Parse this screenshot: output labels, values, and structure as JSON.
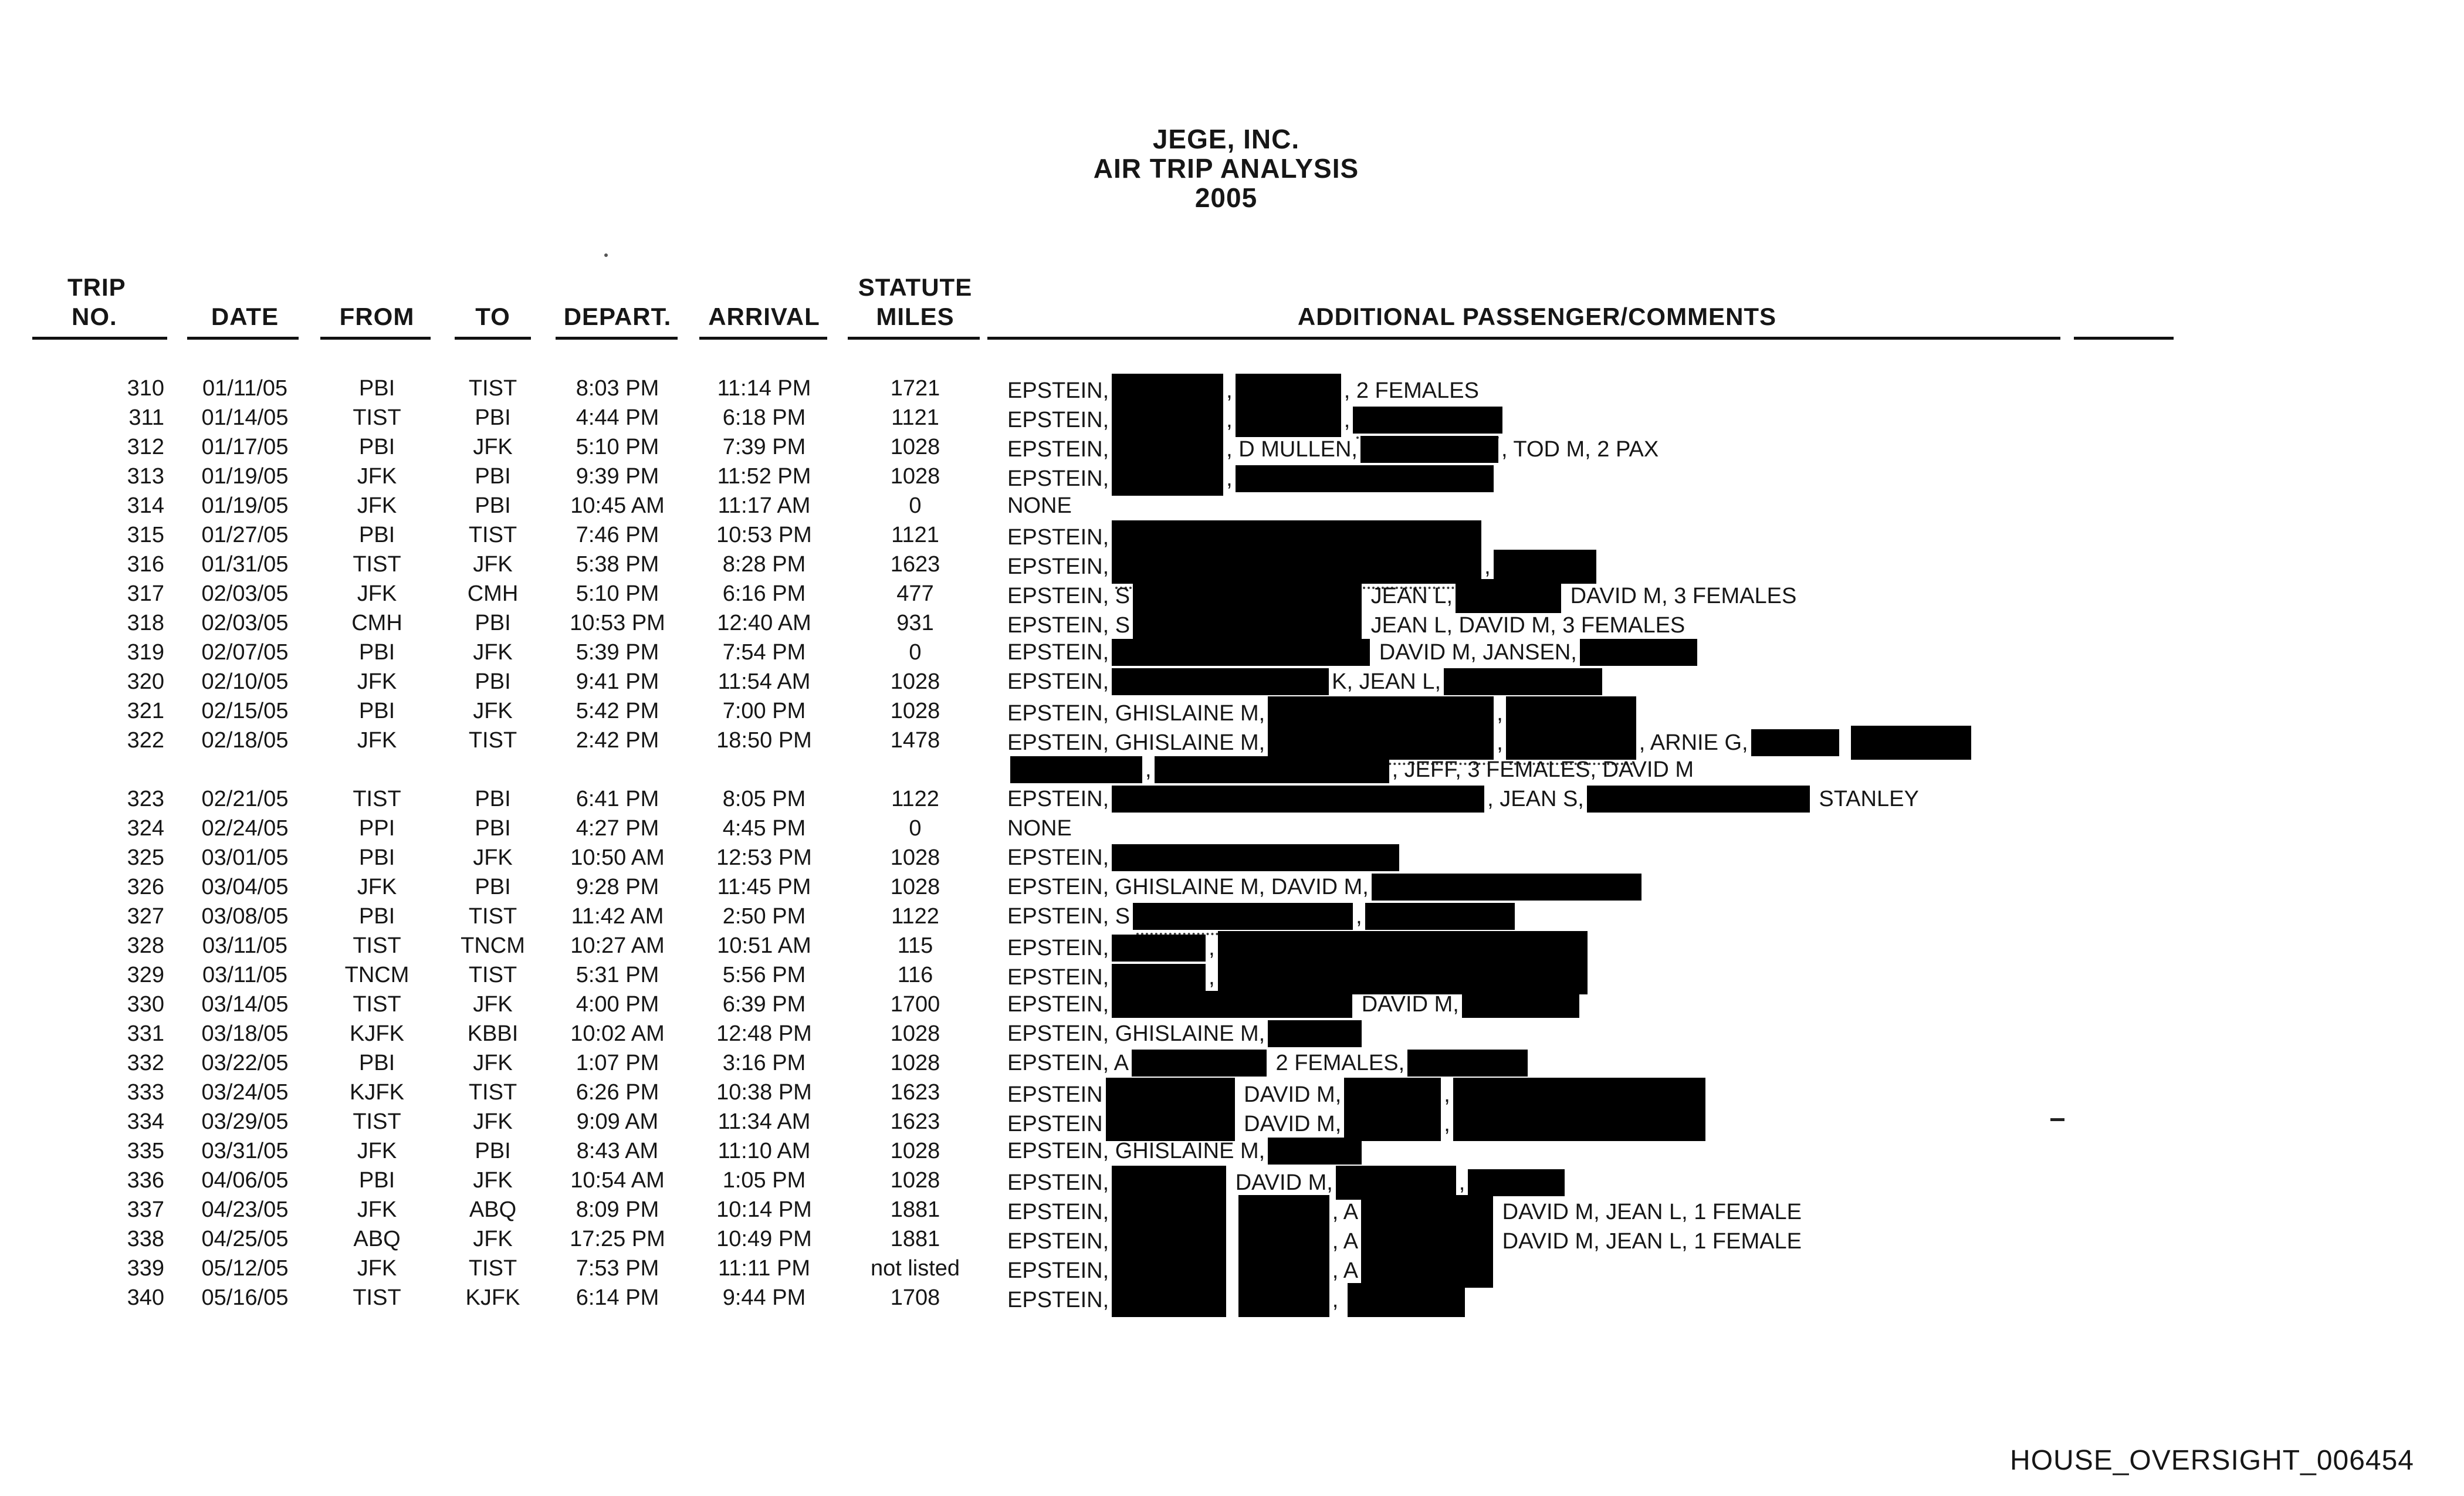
{
  "title": {
    "company": "JEGE, INC.",
    "report": "AIR TRIP ANALYSIS",
    "year": "2005"
  },
  "table": {
    "headers": {
      "trip_line1": "TRIP",
      "trip_line2": "NO.",
      "date": "DATE",
      "from": "FROM",
      "to": "TO",
      "depart": "DEPART.",
      "arrival": "ARRIVAL",
      "statute_line1": "STATUTE",
      "statute_line2": "MILES",
      "comments": "ADDITIONAL PASSENGER/COMMENTS"
    },
    "rows": [
      {
        "no": "310",
        "date": "01/11/05",
        "from": "PBI",
        "to": "TIST",
        "depart": "8:03 PM",
        "arrival": "11:14 PM",
        "miles": "1721",
        "comments": [
          {
            "text": "EPSTEIN,"
          },
          {
            "redact": 190,
            "tall": true
          },
          {
            "text": ","
          },
          {
            "redact": 180,
            "tall": true
          },
          {
            "text": ", 2 FEMALES"
          }
        ]
      },
      {
        "no": "311",
        "date": "01/14/05",
        "from": "TIST",
        "to": "PBI",
        "depart": "4:44 PM",
        "arrival": "6:18 PM",
        "miles": "1121",
        "comments": [
          {
            "text": "EPSTEIN,"
          },
          {
            "redact": 190,
            "tall": true
          },
          {
            "text": ","
          },
          {
            "redact": 180,
            "tall": true
          },
          {
            "text": ","
          },
          {
            "redact": 255,
            "rem": true
          }
        ]
      },
      {
        "no": "312",
        "date": "01/17/05",
        "from": "PBI",
        "to": "JFK",
        "depart": "5:10 PM",
        "arrival": "7:39 PM",
        "miles": "1028",
        "comments": [
          {
            "text": "EPSTEIN,"
          },
          {
            "redact": 190,
            "tall": true
          },
          {
            "text": ", D MULLEN,"
          },
          {
            "redact": 235
          },
          {
            "text": ", TOD M, 2 PAX"
          }
        ]
      },
      {
        "no": "313",
        "date": "01/19/05",
        "from": "JFK",
        "to": "PBI",
        "depart": "9:39 PM",
        "arrival": "11:52 PM",
        "miles": "1028",
        "comments": [
          {
            "text": "EPSTEIN,"
          },
          {
            "redact": 190,
            "tall": true
          },
          {
            "text": ","
          },
          {
            "redact": 440
          }
        ]
      },
      {
        "no": "314",
        "date": "01/19/05",
        "from": "JFK",
        "to": "PBI",
        "depart": "10:45 AM",
        "arrival": "11:17 AM",
        "miles": "0",
        "comments": [
          {
            "text": "NONE"
          }
        ]
      },
      {
        "no": "315",
        "date": "01/27/05",
        "from": "PBI",
        "to": "TIST",
        "depart": "7:46 PM",
        "arrival": "10:53 PM",
        "miles": "1121",
        "comments": [
          {
            "text": "EPSTEIN,"
          },
          {
            "redact": 630,
            "tall": true
          }
        ]
      },
      {
        "no": "316",
        "date": "01/31/05",
        "from": "TIST",
        "to": "JFK",
        "depart": "5:38 PM",
        "arrival": "8:28 PM",
        "miles": "1623",
        "comments": [
          {
            "text": "EPSTEIN,"
          },
          {
            "redact": 630,
            "tall": true,
            "rem": true
          },
          {
            "text": ","
          },
          {
            "redact": 175,
            "tall": true
          }
        ]
      },
      {
        "no": "317",
        "date": "02/03/05",
        "from": "JFK",
        "to": "CMH",
        "depart": "5:10 PM",
        "arrival": "6:16 PM",
        "miles": "477",
        "comments": [
          {
            "text": "EPSTEIN, S"
          },
          {
            "redact": 390,
            "tall": true
          },
          {
            "text": " JEAN L,"
          },
          {
            "redact": 180,
            "tall": true
          },
          {
            "text": " DAVID M, 3 FEMALES"
          }
        ]
      },
      {
        "no": "318",
        "date": "02/03/05",
        "from": "CMH",
        "to": "PBI",
        "depart": "10:53 PM",
        "arrival": "12:40 AM",
        "miles": "931",
        "comments": [
          {
            "text": "EPSTEIN, S"
          },
          {
            "redact": 390,
            "tall": true
          },
          {
            "text": " JEAN L, DAVID M, 3 FEMALES"
          }
        ]
      },
      {
        "no": "319",
        "date": "02/07/05",
        "from": "PBI",
        "to": "JFK",
        "depart": "5:39 PM",
        "arrival": "7:54 PM",
        "miles": "0",
        "comments": [
          {
            "text": "EPSTEIN,"
          },
          {
            "redact": 440
          },
          {
            "text": " DAVID M, JANSEN,"
          },
          {
            "redact": 200
          }
        ]
      },
      {
        "no": "320",
        "date": "02/10/05",
        "from": "JFK",
        "to": "PBI",
        "depart": "9:41 PM",
        "arrival": "11:54 AM",
        "miles": "1028",
        "comments": [
          {
            "text": "EPSTEIN,"
          },
          {
            "redact": 370
          },
          {
            "text": "K, JEAN L,"
          },
          {
            "redact": 270
          }
        ]
      },
      {
        "no": "321",
        "date": "02/15/05",
        "from": "PBI",
        "to": "JFK",
        "depart": "5:42 PM",
        "arrival": "7:00 PM",
        "miles": "1028",
        "comments": [
          {
            "text": "EPSTEIN, GHISLAINE M,"
          },
          {
            "redact": 385,
            "tall": true
          },
          {
            "text": ","
          },
          {
            "redact": 222,
            "tall": true
          }
        ]
      },
      {
        "no": "322",
        "date": "02/18/05",
        "from": "JFK",
        "to": "TIST",
        "depart": "2:42 PM",
        "arrival": "18:50 PM",
        "miles": "1478",
        "comments": [
          {
            "text": "EPSTEIN, GHISLAINE M,"
          },
          {
            "redact": 385,
            "tall": true,
            "rem": true
          },
          {
            "text": ","
          },
          {
            "redact": 222,
            "tall": true,
            "rem": true
          },
          {
            "text": ", ARNIE G,"
          },
          {
            "redact": 150
          },
          {
            "text": " "
          },
          {
            "redact": 205,
            "tall": true
          }
        ]
      },
      {
        "no": "",
        "date": "",
        "from": "",
        "to": "",
        "depart": "",
        "arrival": "",
        "miles": "",
        "comments": [
          {
            "redact": 225
          },
          {
            "text": ","
          },
          {
            "redact": 400
          },
          {
            "text": ", JEFF, 3 FEMALES, DAVID M"
          }
        ]
      },
      {
        "no": "323",
        "date": "02/21/05",
        "from": "TIST",
        "to": "PBI",
        "depart": "6:41 PM",
        "arrival": "8:05 PM",
        "miles": "1122",
        "comments": [
          {
            "text": "EPSTEIN,"
          },
          {
            "redact": 635
          },
          {
            "text": ", JEAN S,"
          },
          {
            "redact": 380
          },
          {
            "text": " STANLEY"
          }
        ]
      },
      {
        "no": "324",
        "date": "02/24/05",
        "from": "PPI",
        "to": "PBI",
        "depart": "4:27 PM",
        "arrival": "4:45 PM",
        "miles": "0",
        "comments": [
          {
            "text": "NONE"
          }
        ]
      },
      {
        "no": "325",
        "date": "03/01/05",
        "from": "PBI",
        "to": "JFK",
        "depart": "10:50 AM",
        "arrival": "12:53 PM",
        "miles": "1028",
        "comments": [
          {
            "text": "EPSTEIN,"
          },
          {
            "redact": 490
          }
        ]
      },
      {
        "no": "326",
        "date": "03/04/05",
        "from": "JFK",
        "to": "PBI",
        "depart": "9:28 PM",
        "arrival": "11:45 PM",
        "miles": "1028",
        "comments": [
          {
            "text": "EPSTEIN, GHISLAINE M, DAVID M,"
          },
          {
            "redact": 460
          }
        ]
      },
      {
        "no": "327",
        "date": "03/08/05",
        "from": "PBI",
        "to": "TIST",
        "depart": "11:42 AM",
        "arrival": "2:50 PM",
        "miles": "1122",
        "comments": [
          {
            "text": "EPSTEIN, S"
          },
          {
            "redact": 375,
            "rem": true
          },
          {
            "text": ","
          },
          {
            "redact": 255,
            "rem": true
          }
        ]
      },
      {
        "no": "328",
        "date": "03/11/05",
        "from": "TIST",
        "to": "TNCM",
        "depart": "10:27 AM",
        "arrival": "10:51 AM",
        "miles": "115",
        "comments": [
          {
            "text": "EPSTEIN,"
          },
          {
            "redact": 160
          },
          {
            "text": ","
          },
          {
            "redact": 630,
            "tall": true
          }
        ]
      },
      {
        "no": "329",
        "date": "03/11/05",
        "from": "TNCM",
        "to": "TIST",
        "depart": "5:31 PM",
        "arrival": "5:56 PM",
        "miles": "116",
        "comments": [
          {
            "text": "EPSTEIN,"
          },
          {
            "redact": 160
          },
          {
            "text": ","
          },
          {
            "redact": 630,
            "tall": true
          }
        ]
      },
      {
        "no": "330",
        "date": "03/14/05",
        "from": "TIST",
        "to": "JFK",
        "depart": "4:00 PM",
        "arrival": "6:39 PM",
        "miles": "1700",
        "comments": [
          {
            "text": "EPSTEIN,"
          },
          {
            "redact": 410
          },
          {
            "text": " DAVID M,"
          },
          {
            "redact": 200
          }
        ]
      },
      {
        "no": "331",
        "date": "03/18/05",
        "from": "KJFK",
        "to": "KBBI",
        "depart": "10:02 AM",
        "arrival": "12:48 PM",
        "miles": "1028",
        "comments": [
          {
            "text": "EPSTEIN, GHISLAINE M,"
          },
          {
            "redact": 160
          }
        ]
      },
      {
        "no": "332",
        "date": "03/22/05",
        "from": "PBI",
        "to": "JFK",
        "depart": "1:07 PM",
        "arrival": "3:16 PM",
        "miles": "1028",
        "comments": [
          {
            "text": "EPSTEIN, A"
          },
          {
            "redact": 230
          },
          {
            "text": " 2 FEMALES,"
          },
          {
            "redact": 205
          }
        ]
      },
      {
        "no": "333",
        "date": "03/24/05",
        "from": "KJFK",
        "to": "TIST",
        "depart": "6:26 PM",
        "arrival": "10:38 PM",
        "miles": "1623",
        "comments": [
          {
            "text": "EPSTEIN"
          },
          {
            "redact": 220,
            "tall": true
          },
          {
            "text": " DAVID M,"
          },
          {
            "redact": 165,
            "tall": true
          },
          {
            "text": ","
          },
          {
            "redact": 430,
            "tall": true,
            "rem": true
          }
        ]
      },
      {
        "no": "334",
        "date": "03/29/05",
        "from": "TIST",
        "to": "JFK",
        "depart": "9:09 AM",
        "arrival": "11:34 AM",
        "miles": "1623",
        "comments": [
          {
            "text": "EPSTEIN"
          },
          {
            "redact": 220,
            "tall": true
          },
          {
            "text": " DAVID M,"
          },
          {
            "redact": 165,
            "tall": true
          },
          {
            "text": ","
          },
          {
            "redact": 430,
            "tall": true
          }
        ]
      },
      {
        "no": "335",
        "date": "03/31/05",
        "from": "JFK",
        "to": "PBI",
        "depart": "8:43 AM",
        "arrival": "11:10 AM",
        "miles": "1028",
        "comments": [
          {
            "text": "EPSTEIN, GHISLAINE M,"
          },
          {
            "redact": 160
          }
        ]
      },
      {
        "no": "336",
        "date": "04/06/05",
        "from": "PBI",
        "to": "JFK",
        "depart": "10:54 AM",
        "arrival": "1:05 PM",
        "miles": "1028",
        "comments": [
          {
            "text": "EPSTEIN,"
          },
          {
            "redact": 195,
            "tall": true
          },
          {
            "text": " DAVID M,"
          },
          {
            "redact": 205,
            "tall": true
          },
          {
            "text": ","
          },
          {
            "redact": 165
          }
        ]
      },
      {
        "no": "337",
        "date": "04/23/05",
        "from": "JFK",
        "to": "ABQ",
        "depart": "8:09 PM",
        "arrival": "10:14 PM",
        "miles": "1881",
        "comments": [
          {
            "text": "EPSTEIN,"
          },
          {
            "redact": 195,
            "tall": true
          },
          {
            "text": " "
          },
          {
            "redact": 155,
            "tall": true
          },
          {
            "text": ", A"
          },
          {
            "redact": 225,
            "tall": true
          },
          {
            "text": " DAVID M, JEAN L, 1 FEMALE"
          }
        ]
      },
      {
        "no": "338",
        "date": "04/25/05",
        "from": "ABQ",
        "to": "JFK",
        "depart": "17:25 PM",
        "arrival": "10:49 PM",
        "miles": "1881",
        "comments": [
          {
            "text": "EPSTEIN,"
          },
          {
            "redact": 195,
            "tall": true
          },
          {
            "text": " "
          },
          {
            "redact": 155,
            "tall": true
          },
          {
            "text": ", A"
          },
          {
            "redact": 225,
            "tall": true
          },
          {
            "text": " DAVID M, JEAN L, 1 FEMALE"
          }
        ]
      },
      {
        "no": "339",
        "date": "05/12/05",
        "from": "JFK",
        "to": "TIST",
        "depart": "7:53 PM",
        "arrival": "11:11 PM",
        "miles": "not listed",
        "comments": [
          {
            "text": "EPSTEIN,"
          },
          {
            "redact": 195,
            "tall": true
          },
          {
            "text": " "
          },
          {
            "redact": 155,
            "tall": true
          },
          {
            "text": ", A"
          },
          {
            "redact": 225,
            "tall": true
          }
        ]
      },
      {
        "no": "340",
        "date": "05/16/05",
        "from": "TIST",
        "to": "KJFK",
        "depart": "6:14 PM",
        "arrival": "9:44 PM",
        "miles": "1708",
        "comments": [
          {
            "text": "EPSTEIN,"
          },
          {
            "redact": 195,
            "tall": true
          },
          {
            "text": " "
          },
          {
            "redact": 155,
            "tall": true
          },
          {
            "text": ", "
          },
          {
            "redact": 200,
            "tall": true
          }
        ]
      }
    ]
  },
  "footer": {
    "bates": "HOUSE_OVERSIGHT_006454"
  },
  "colors": {
    "ink": "#161616",
    "paper": "#ffffff",
    "redaction": "#000000"
  }
}
